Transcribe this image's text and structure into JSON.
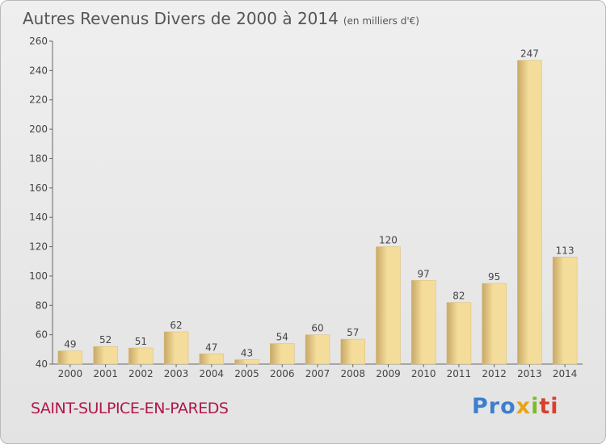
{
  "header": {
    "title": "Autres Revenus Divers de 2000 à 2014",
    "unit": "(en milliers d'€)"
  },
  "footer": {
    "commune": "SAINT-SULPICE-EN-PAREDS",
    "brand_parts": [
      "Pro",
      "x",
      "i",
      "ti"
    ]
  },
  "colors": {
    "bar_light": "#f4dc9a",
    "bar_dark": "#c8a866",
    "title": "#555555",
    "commune": "#b0174c"
  },
  "chart_data": {
    "type": "bar",
    "title": "Autres Revenus Divers de 2000 à 2014",
    "xlabel": "",
    "ylabel": "",
    "ylim": [
      40,
      260
    ],
    "yticks": [
      40,
      60,
      80,
      100,
      120,
      140,
      160,
      180,
      200,
      220,
      240,
      260
    ],
    "grid": false,
    "categories": [
      "2000",
      "2001",
      "2002",
      "2003",
      "2004",
      "2005",
      "2006",
      "2007",
      "2008",
      "2009",
      "2010",
      "2011",
      "2012",
      "2013",
      "2014"
    ],
    "values": [
      49,
      52,
      51,
      62,
      47,
      43,
      54,
      60,
      57,
      120,
      97,
      82,
      95,
      247,
      113
    ]
  }
}
